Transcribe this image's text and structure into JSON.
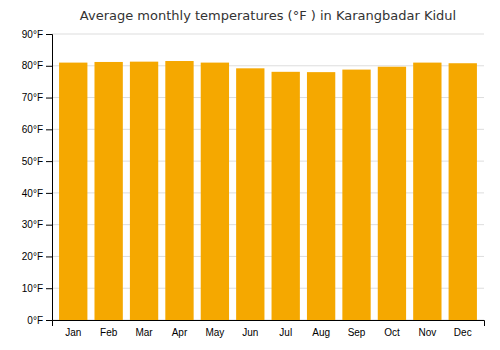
{
  "chart_data": {
    "type": "bar",
    "title": "Average monthly temperatures (°F ) in Karangbadar Kidul",
    "categories": [
      "Jan",
      "Feb",
      "Mar",
      "Apr",
      "May",
      "Jun",
      "Jul",
      "Aug",
      "Sep",
      "Oct",
      "Nov",
      "Dec"
    ],
    "values": [
      81.0,
      81.2,
      81.3,
      81.5,
      81.0,
      79.2,
      78.1,
      78.0,
      78.8,
      79.7,
      81.0,
      80.8
    ],
    "color": "#F5A800",
    "ylim": [
      0,
      90
    ],
    "yticks": [
      {
        "value": 0,
        "label": "0°F"
      },
      {
        "value": 10,
        "label": "10°F"
      },
      {
        "value": 20,
        "label": "20°F"
      },
      {
        "value": 30,
        "label": "30°F"
      },
      {
        "value": 40,
        "label": "40°F"
      },
      {
        "value": 50,
        "label": "50°F"
      },
      {
        "value": 60,
        "label": "60°F"
      },
      {
        "value": 70,
        "label": "70°F"
      },
      {
        "value": 80,
        "label": "80°F"
      },
      {
        "value": 90,
        "label": "90°F"
      }
    ],
    "grid": true
  }
}
